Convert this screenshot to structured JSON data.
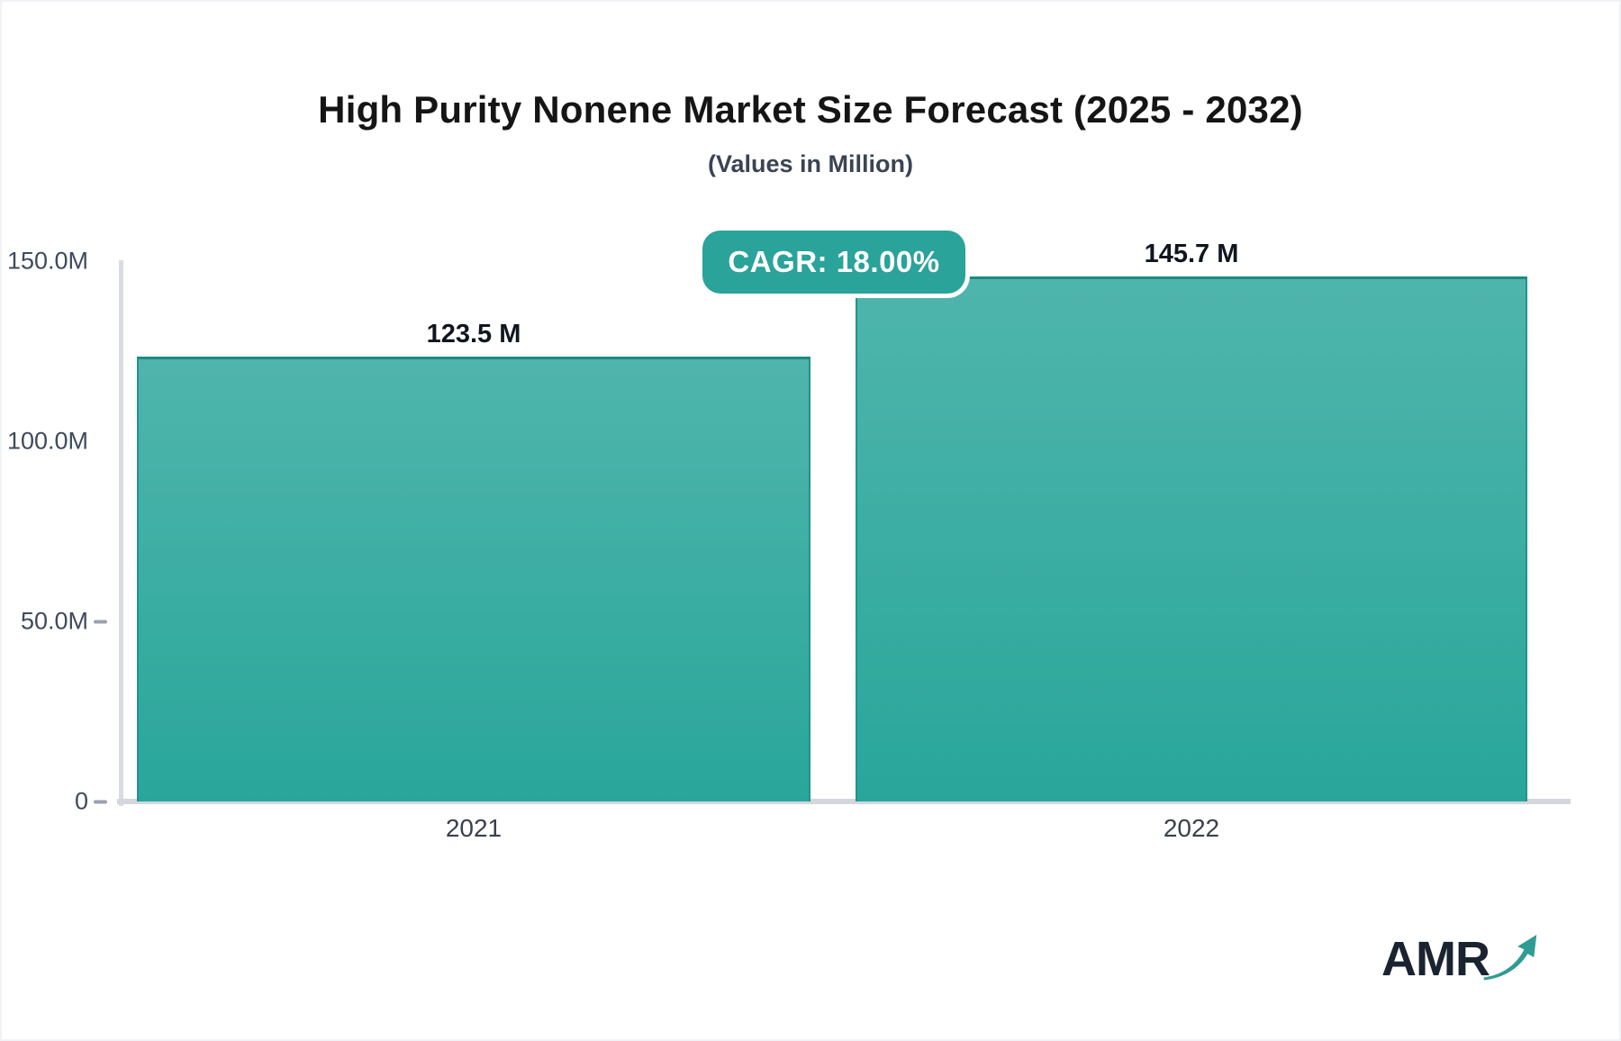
{
  "page": {
    "title": "High Purity Nonene Market Size Forecast (2025 - 2032)",
    "subtitle": "(Values in Million)"
  },
  "badge": {
    "label": "CAGR: 18.00%"
  },
  "chart_data": {
    "type": "bar",
    "title": "High Purity Nonene Market Size Forecast (2025 - 2032)",
    "subtitle": "(Values in Million)",
    "categories": [
      "2021",
      "2022"
    ],
    "values": [
      123.5,
      145.7
    ],
    "value_labels": [
      "123.5 M",
      "145.7 M"
    ],
    "unit": "Million",
    "cagr_percent": "18.00%",
    "ylim": [
      0,
      150
    ],
    "yticks": [
      {
        "value": 150,
        "label": "150.0M",
        "tick": false
      },
      {
        "value": 100,
        "label": "100.0M",
        "tick": false
      },
      {
        "value": 50,
        "label": "50.0M",
        "tick": true
      },
      {
        "value": 0,
        "label": "0",
        "tick": true
      }
    ],
    "grid": false,
    "legend": false,
    "bar_color_top": "#4fb5ac",
    "bar_color_bottom": "#29a69a",
    "bar_border": "#23938a",
    "bar_border_top": "#1d8b82"
  },
  "logo": {
    "text": "AMR",
    "icon": "growth-arrow-icon",
    "text_color": "#1a2430",
    "arrow_color": "#2e9c93"
  },
  "colors": {
    "accent": "#2aa39a",
    "axis_line": "#d3d6dd",
    "tick_label": "#3f4a5c",
    "title": "#151515",
    "subtitle": "#3a4454",
    "value_label": "#10161f"
  }
}
